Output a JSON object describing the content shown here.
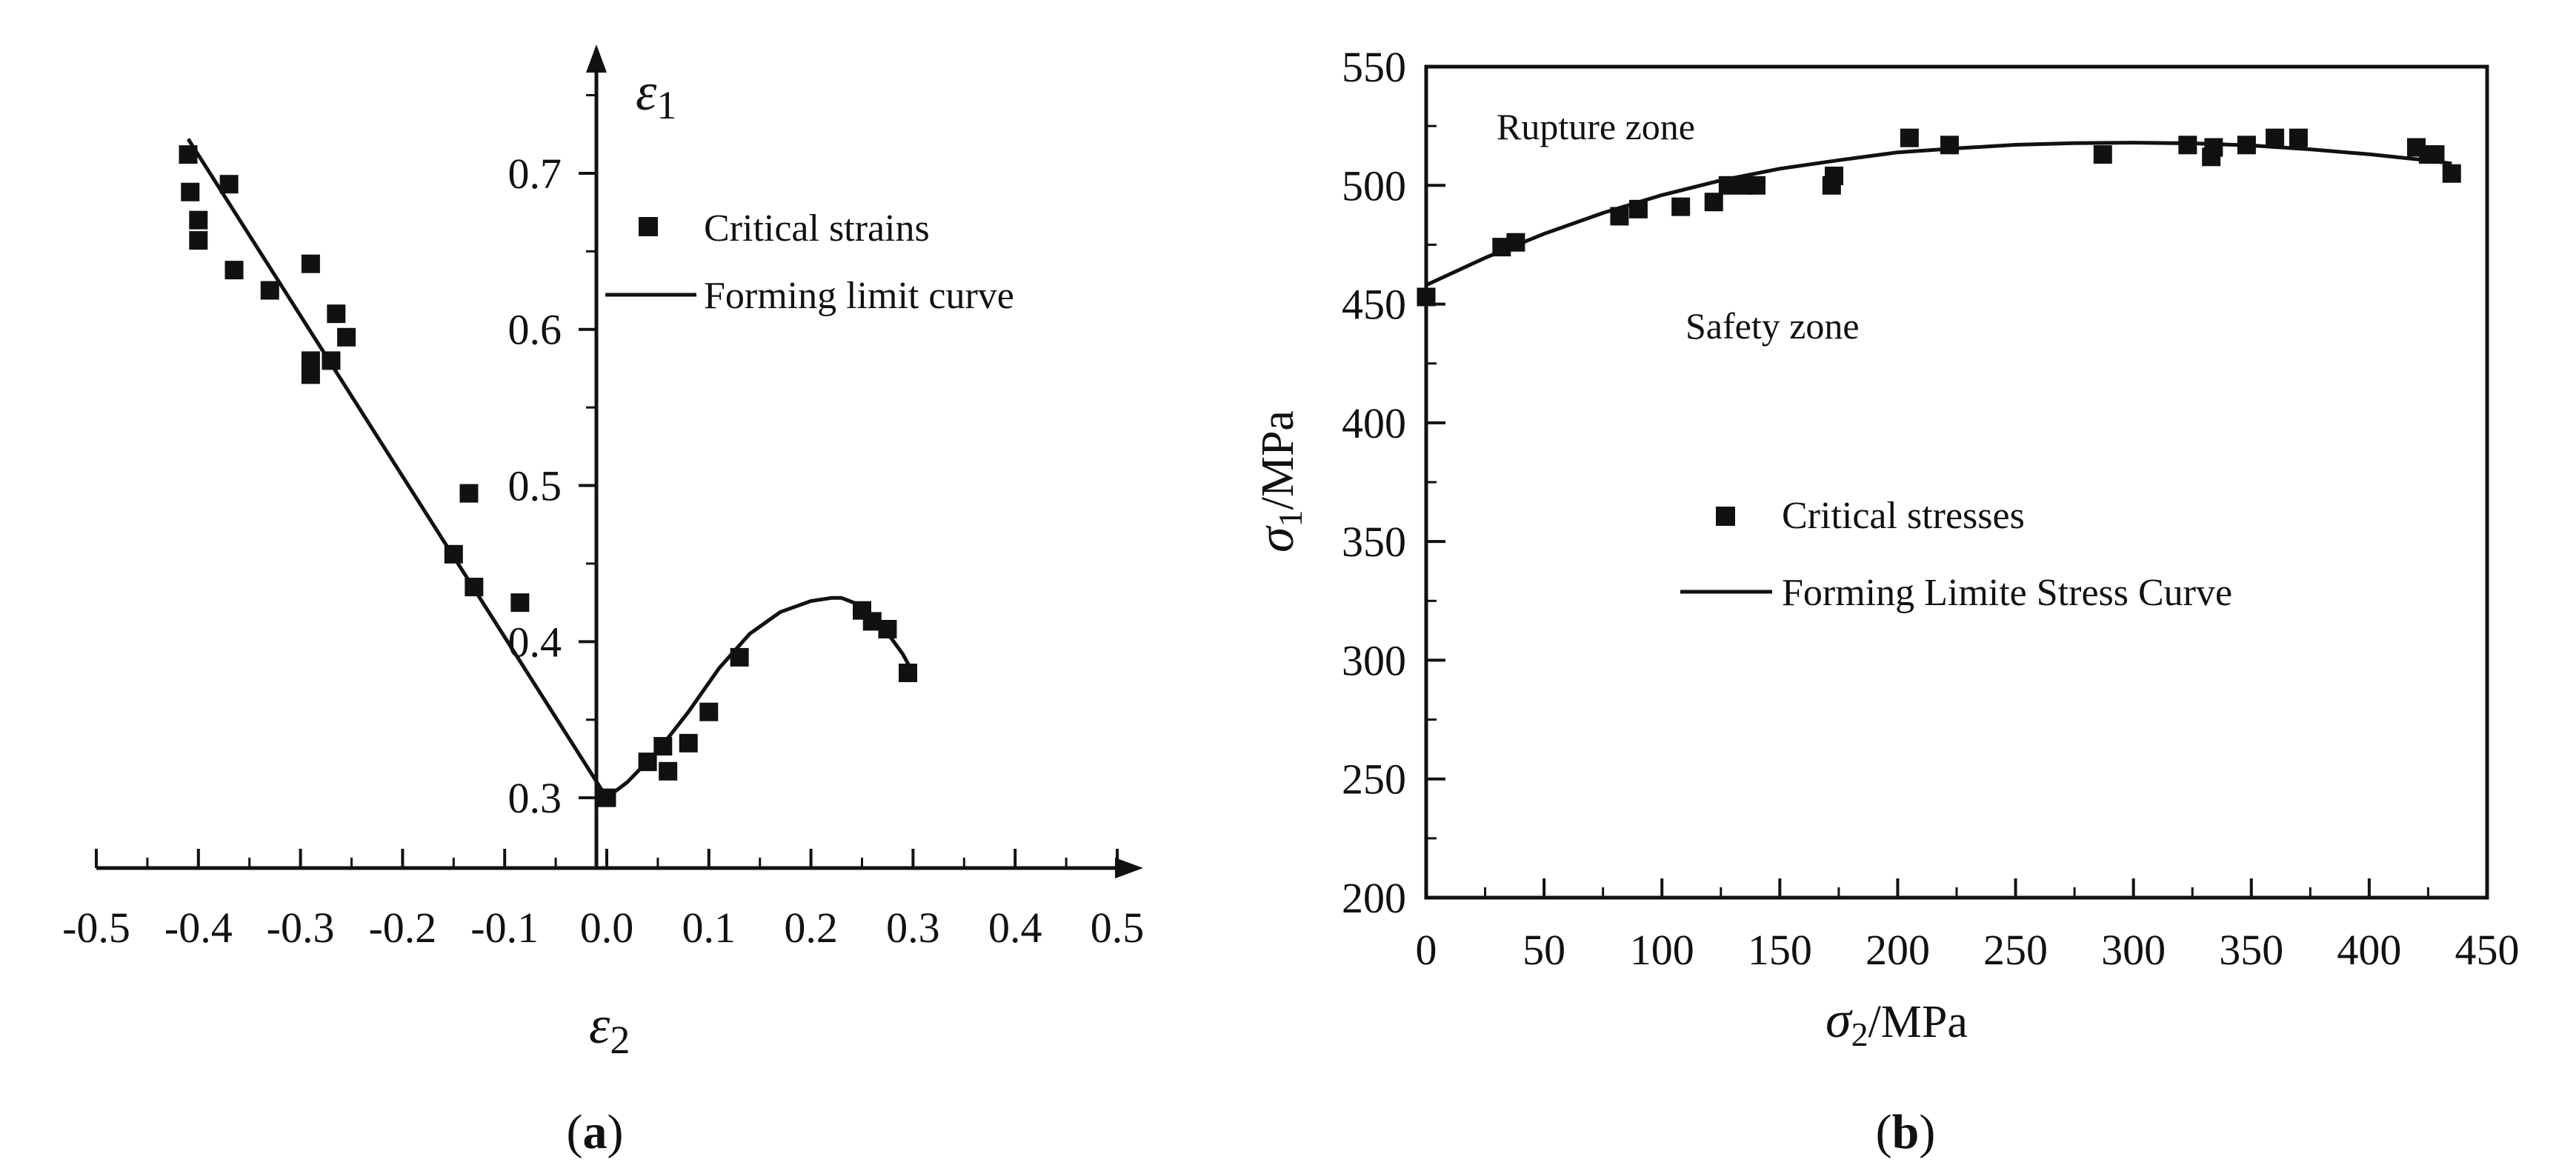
{
  "chart_data": [
    {
      "type": "scatter",
      "panel_label_open": "(",
      "panel_label_letter": "a",
      "panel_label_close": ")",
      "xlabel_symbol": "ε",
      "xlabel_sub": "2",
      "ylabel_symbol": "ε",
      "ylabel_sub": "1",
      "xlim": [
        -0.5,
        0.5
      ],
      "ylim": [
        0.255,
        0.755
      ],
      "x_ticks": [
        -0.5,
        -0.4,
        -0.3,
        -0.2,
        -0.1,
        0.0,
        0.1,
        0.2,
        0.3,
        0.4,
        0.5
      ],
      "x_tick_labels": [
        "-0.5",
        "-0.4",
        "-0.3",
        "-0.2",
        "-0.1",
        "0.0",
        "0.1",
        "0.2",
        "0.3",
        "0.4",
        "0.5"
      ],
      "y_ticks": [
        0.3,
        0.4,
        0.5,
        0.6,
        0.7
      ],
      "y_tick_labels": [
        "0.3",
        "0.4",
        "0.5",
        "0.6",
        "0.7"
      ],
      "legend": {
        "position": "upper-center",
        "scatter_label": "Critical strains",
        "line_label": "Forming limit curve"
      },
      "series": [
        {
          "name": "Critical strains",
          "kind": "scatter",
          "x": [
            -0.41,
            -0.408,
            -0.4,
            -0.4,
            -0.37,
            -0.365,
            -0.33,
            -0.29,
            -0.29,
            -0.29,
            -0.27,
            -0.265,
            -0.255,
            -0.15,
            -0.135,
            -0.13,
            -0.085,
            0.0,
            0.04,
            0.055,
            0.06,
            0.08,
            0.1,
            0.13,
            0.25,
            0.26,
            0.275,
            0.295
          ],
          "y": [
            0.712,
            0.688,
            0.67,
            0.657,
            0.693,
            0.638,
            0.625,
            0.642,
            0.58,
            0.571,
            0.58,
            0.61,
            0.595,
            0.456,
            0.495,
            0.435,
            0.425,
            0.3,
            0.323,
            0.333,
            0.317,
            0.335,
            0.355,
            0.39,
            0.42,
            0.413,
            0.408,
            0.38
          ]
        },
        {
          "name": "Forming limit curve",
          "kind": "line",
          "x": [
            -0.41,
            0.0,
            0.02,
            0.05,
            0.08,
            0.11,
            0.14,
            0.17,
            0.2,
            0.22,
            0.23,
            0.25,
            0.27,
            0.29,
            0.3
          ],
          "y": [
            0.722,
            0.3,
            0.31,
            0.33,
            0.355,
            0.383,
            0.405,
            0.419,
            0.426,
            0.428,
            0.428,
            0.423,
            0.41,
            0.392,
            0.38
          ]
        }
      ]
    },
    {
      "type": "scatter",
      "panel_label_open": "(",
      "panel_label_letter": "b",
      "panel_label_close": ")",
      "xlabel_symbol": "σ",
      "xlabel_sub": "2",
      "xlabel_unit": "/MPa",
      "ylabel_symbol": "σ",
      "ylabel_sub": "1",
      "ylabel_unit": "/MPa",
      "xlim": [
        0,
        450
      ],
      "ylim": [
        200,
        550
      ],
      "x_ticks": [
        0,
        50,
        100,
        150,
        200,
        250,
        300,
        350,
        400,
        450
      ],
      "x_tick_labels": [
        "0",
        "50",
        "100",
        "150",
        "200",
        "250",
        "300",
        "350",
        "400",
        "450"
      ],
      "y_ticks": [
        200,
        250,
        300,
        350,
        400,
        450,
        500,
        550
      ],
      "y_tick_labels": [
        "200",
        "250",
        "300",
        "350",
        "400",
        "450",
        "500",
        "550"
      ],
      "annotations": {
        "upper": "Rupture zone",
        "lower": "Safety zone"
      },
      "legend": {
        "position": "center",
        "scatter_label": "Critical stresses",
        "line_label": "Forming Limite Stress Curve"
      },
      "series": [
        {
          "name": "Critical stresses",
          "kind": "scatter",
          "x": [
            0,
            32,
            38,
            82,
            90,
            108,
            122,
            128,
            135,
            140,
            172,
            173,
            205,
            222,
            287,
            323,
            333,
            334,
            348,
            360,
            370,
            420,
            425,
            428,
            435
          ],
          "y": [
            453,
            474,
            476,
            487,
            490,
            491,
            493,
            500,
            500,
            500,
            500,
            504,
            520,
            517,
            513,
            517,
            512,
            516,
            517,
            520,
            520,
            516,
            513,
            513,
            505
          ]
        },
        {
          "name": "Forming Limite Stress Curve",
          "kind": "line",
          "x": [
            0,
            25,
            50,
            75,
            100,
            125,
            150,
            175,
            200,
            225,
            250,
            275,
            300,
            325,
            350,
            375,
            400,
            425,
            435
          ],
          "y": [
            458,
            469.5,
            479.6,
            488.4,
            495.9,
            502.1,
            507,
            510.6,
            513.9,
            515.6,
            517.1,
            517.8,
            518,
            517.7,
            516.8,
            515.2,
            513.1,
            510.5,
            509.2
          ]
        }
      ]
    }
  ]
}
